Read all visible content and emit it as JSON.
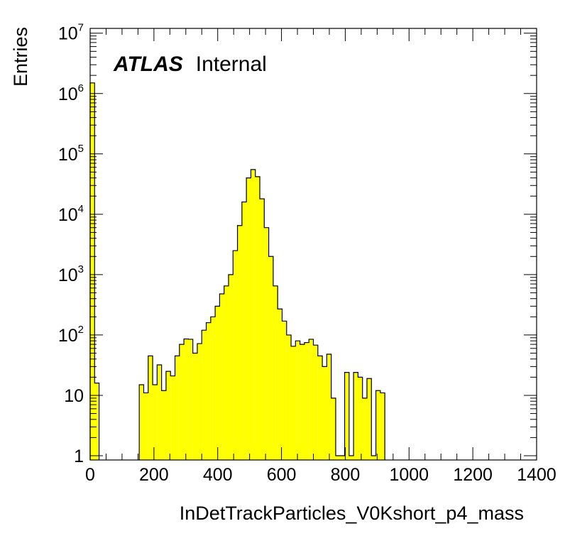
{
  "chart_data": {
    "type": "bar",
    "histogram": true,
    "fill_color": "#ffff00",
    "line_color": "#000000",
    "xlabel": "InDetTrackParticles_V0Kshort_p4_mass",
    "ylabel": "Entries",
    "x_tick_labels": [
      "0",
      "200",
      "400",
      "600",
      "800",
      "1000",
      "1200",
      "1400"
    ],
    "y_tick_labels": [
      {
        "base": "10",
        "exp": "7"
      },
      {
        "base": "10",
        "exp": "6"
      },
      {
        "base": "10",
        "exp": "5"
      },
      {
        "base": "10",
        "exp": "4"
      },
      {
        "base": "10",
        "exp": "3"
      },
      {
        "base": "10",
        "exp": "2"
      },
      {
        "base": "10",
        "exp": ""
      },
      {
        "base": "1",
        "exp": ""
      }
    ],
    "xlim": [
      0,
      1400
    ],
    "ylim": [
      0.85,
      12000000
    ],
    "y_scale": "log",
    "grid": false,
    "annotation": {
      "bold": "ATLAS",
      "plain": "Internal"
    },
    "bin_width": 14,
    "bins": [
      [
        0,
        1500000
      ],
      [
        14,
        16
      ],
      [
        154,
        15
      ],
      [
        168,
        11
      ],
      [
        182,
        45
      ],
      [
        196,
        15
      ],
      [
        210,
        32
      ],
      [
        224,
        12
      ],
      [
        238,
        25
      ],
      [
        252,
        21
      ],
      [
        266,
        45
      ],
      [
        280,
        70
      ],
      [
        294,
        86
      ],
      [
        308,
        85
      ],
      [
        322,
        50
      ],
      [
        336,
        72
      ],
      [
        350,
        120
      ],
      [
        364,
        160
      ],
      [
        378,
        200
      ],
      [
        392,
        300
      ],
      [
        406,
        480
      ],
      [
        420,
        650
      ],
      [
        434,
        1000
      ],
      [
        448,
        2500
      ],
      [
        462,
        6500
      ],
      [
        476,
        16000
      ],
      [
        490,
        40000
      ],
      [
        504,
        55000
      ],
      [
        518,
        42000
      ],
      [
        532,
        18000
      ],
      [
        546,
        6000
      ],
      [
        560,
        2000
      ],
      [
        574,
        650
      ],
      [
        588,
        270
      ],
      [
        602,
        170
      ],
      [
        616,
        100
      ],
      [
        630,
        65
      ],
      [
        644,
        80
      ],
      [
        658,
        70
      ],
      [
        672,
        75
      ],
      [
        686,
        85
      ],
      [
        700,
        68
      ],
      [
        714,
        45
      ],
      [
        728,
        30
      ],
      [
        742,
        48
      ],
      [
        756,
        9
      ],
      [
        770,
        1
      ],
      [
        784,
        1
      ],
      [
        798,
        24
      ],
      [
        812,
        1
      ],
      [
        826,
        24
      ],
      [
        840,
        20
      ],
      [
        854,
        9
      ],
      [
        868,
        19
      ],
      [
        882,
        1
      ],
      [
        896,
        12
      ],
      [
        910,
        11
      ]
    ]
  }
}
